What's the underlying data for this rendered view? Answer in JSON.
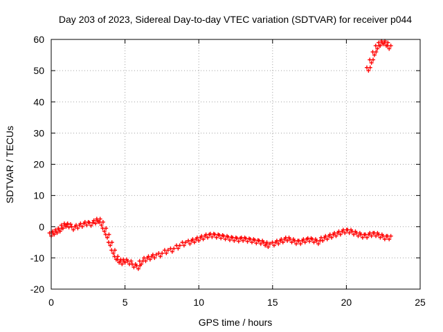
{
  "chart_data": {
    "type": "scatter",
    "title": "Day 203 of 2023, Sidereal Day-to-day VTEC variation (SDTVAR) for receiver p044",
    "xlabel": "GPS time / hours",
    "ylabel": "SDTVAR / TECUs",
    "xlim": [
      0,
      25
    ],
    "ylim": [
      -20,
      60
    ],
    "xticks": [
      0,
      5,
      10,
      15,
      20,
      25
    ],
    "yticks": [
      -20,
      -10,
      0,
      10,
      20,
      30,
      40,
      50,
      60
    ],
    "grid": true,
    "marker": "+",
    "series": [
      {
        "name": "SDTVAR",
        "color": "#ff0000",
        "x": [
          0.0,
          0.2,
          0.4,
          0.6,
          0.8,
          1.0,
          1.2,
          1.5,
          1.8,
          2.1,
          2.4,
          2.7,
          3.0,
          3.2,
          3.4,
          3.6,
          3.8,
          4.0,
          4.2,
          4.4,
          4.6,
          4.8,
          5.0,
          5.3,
          5.6,
          5.9,
          6.1,
          6.4,
          6.7,
          7.0,
          7.4,
          7.8,
          8.2,
          8.6,
          9.0,
          9.4,
          9.7,
          10.0,
          10.3,
          10.6,
          10.9,
          11.2,
          11.5,
          11.8,
          12.1,
          12.4,
          12.7,
          13.0,
          13.3,
          13.6,
          13.9,
          14.2,
          14.5,
          14.7,
          15.1,
          15.4,
          15.7,
          16.0,
          16.3,
          16.6,
          16.9,
          17.2,
          17.5,
          17.8,
          18.1,
          18.4,
          18.7,
          19.0,
          19.3,
          19.6,
          19.9,
          20.2,
          20.5,
          20.8,
          21.1,
          21.4,
          21.7,
          22.0,
          22.3,
          22.6,
          22.9,
          21.5,
          21.7,
          21.9,
          22.1,
          22.3,
          22.5,
          22.7,
          22.9
        ],
        "y": [
          -2.5,
          -2.0,
          -1.5,
          -1.0,
          0.0,
          0.5,
          0.3,
          -0.5,
          0.0,
          0.5,
          1.0,
          0.8,
          1.5,
          2.0,
          1.0,
          -1.0,
          -3.0,
          -5.5,
          -8.0,
          -10.0,
          -11.0,
          -11.5,
          -11.0,
          -11.5,
          -12.5,
          -13.0,
          -11.5,
          -10.5,
          -10.0,
          -9.5,
          -9.0,
          -8.0,
          -7.5,
          -6.5,
          -5.5,
          -5.0,
          -4.5,
          -4.0,
          -3.5,
          -3.0,
          -2.8,
          -3.0,
          -3.2,
          -3.5,
          -3.8,
          -4.0,
          -4.2,
          -4.0,
          -4.3,
          -4.5,
          -4.8,
          -5.0,
          -5.5,
          -6.0,
          -5.5,
          -5.0,
          -4.5,
          -4.0,
          -4.5,
          -5.0,
          -5.0,
          -4.5,
          -4.2,
          -4.5,
          -5.0,
          -4.0,
          -3.5,
          -3.0,
          -2.5,
          -2.0,
          -1.5,
          -1.5,
          -2.0,
          -2.5,
          -3.0,
          -3.0,
          -2.5,
          -2.5,
          -3.0,
          -3.5,
          -3.5,
          50.5,
          53.0,
          55.5,
          57.5,
          58.5,
          59.0,
          58.5,
          57.5
        ]
      }
    ]
  }
}
